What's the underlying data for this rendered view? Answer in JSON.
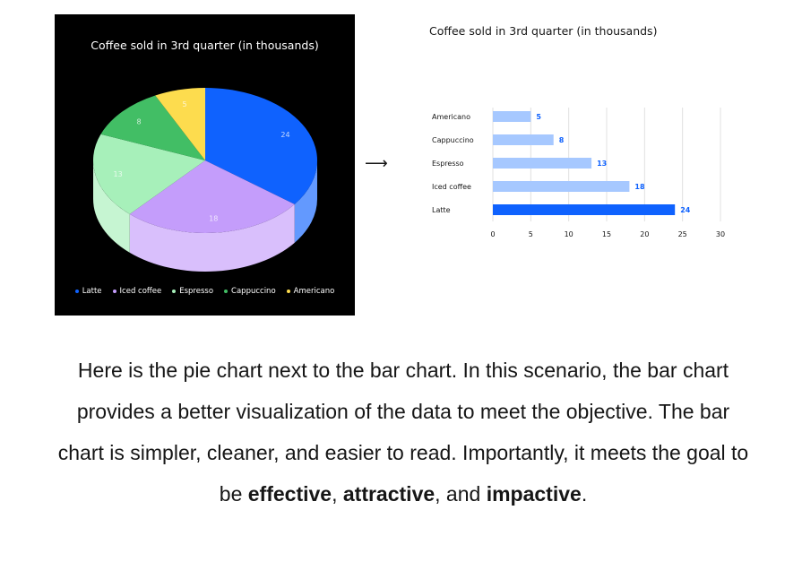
{
  "arrow": "⟶",
  "chart_data": [
    {
      "type": "pie",
      "title": "Coffee sold in 3rd quarter (in thousands)",
      "background": "#000000",
      "slices": [
        {
          "label": "Latte",
          "value": 24,
          "color": "#0f62fe"
        },
        {
          "label": "Iced coffee",
          "value": 18,
          "color": "#c49dfb"
        },
        {
          "label": "Espresso",
          "value": 13,
          "color": "#a7f0ba"
        },
        {
          "label": "Cappuccino",
          "value": 8,
          "color": "#42be65"
        },
        {
          "label": "Americano",
          "value": 5,
          "color": "#fddc4e"
        }
      ],
      "legend": [
        "Latte",
        "Iced coffee",
        "Espresso",
        "Cappuccino",
        "Americano"
      ],
      "legend_position": "bottom"
    },
    {
      "type": "bar",
      "orientation": "horizontal",
      "title": "Coffee sold in 3rd quarter (in thousands)",
      "categories": [
        "Americano",
        "Cappuccino",
        "Espresso",
        "Iced coffee",
        "Latte"
      ],
      "values": [
        5,
        8,
        13,
        18,
        24
      ],
      "colors": [
        "#a6c8ff",
        "#a6c8ff",
        "#a6c8ff",
        "#a6c8ff",
        "#0f62fe"
      ],
      "label_color": "#0f62fe",
      "xlim": [
        0,
        30
      ],
      "xticks": [
        0,
        5,
        10,
        15,
        20,
        25,
        30
      ],
      "grid": true
    }
  ],
  "caption": {
    "text_1": "Here is the pie chart next to the bar chart. In this scenario, the bar chart provides a better visualization of the data to meet the objective. The bar chart is simpler, cleaner, and easier to read. Importantly, it meets the goal to be ",
    "bold_1": "effective",
    "text_2": ", ",
    "bold_2": "attractive",
    "text_3": ", and ",
    "bold_3": "impactive",
    "text_4": "."
  }
}
